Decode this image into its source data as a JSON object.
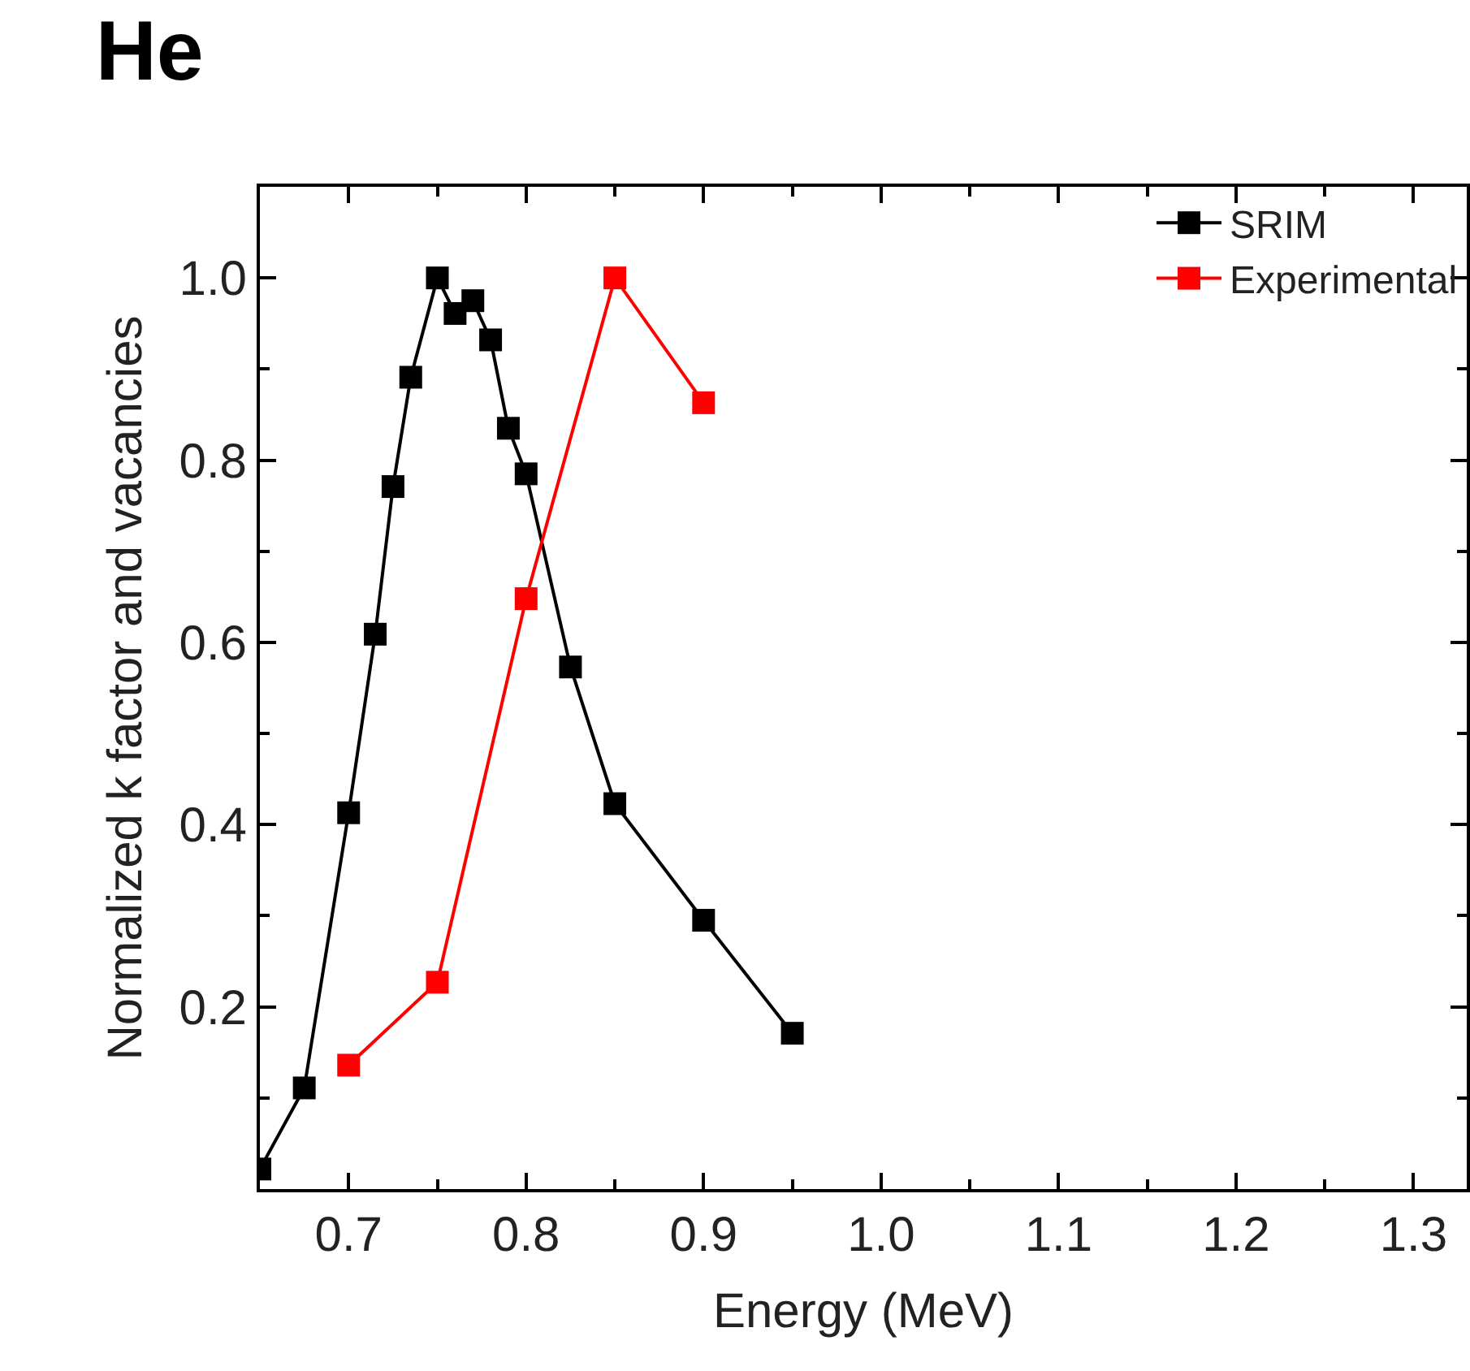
{
  "chart_data": {
    "type": "line",
    "title": "He",
    "xlabel": "Energy (MeV)",
    "ylabel": "Normalized k factor and vacancies",
    "xlim": [
      0.65,
      1.33
    ],
    "xticks": [
      0.7,
      0.8,
      0.9,
      {
        "value": 1,
        "label": "1.0"
      },
      1.1,
      1.2,
      1.3
    ],
    "ylim": [
      0,
      1.1
    ],
    "yticks": [
      0.2,
      0.4,
      0.6,
      0.8,
      {
        "value": 1,
        "label": "1.0"
      }
    ],
    "grid": false,
    "legend": "top right",
    "marker": "square",
    "line_style": "solid",
    "series": [
      {
        "name": "SRIM",
        "color": "#000000",
        "x": [
          0.65,
          0.675,
          0.7,
          0.715,
          0.725,
          0.735,
          0.75,
          0.76,
          0.77,
          0.78,
          0.79,
          0.8,
          0.825,
          0.85,
          0.9,
          0.95
        ],
        "values": [
          0.022,
          0.111,
          0.413,
          0.609,
          0.771,
          0.891,
          1.0,
          0.961,
          0.975,
          0.932,
          0.835,
          0.785,
          0.573,
          0.423,
          0.295,
          0.171
        ]
      },
      {
        "name": "Experimental",
        "color": "#ff0000",
        "x": [
          0.7,
          0.75,
          0.8,
          0.85,
          0.9
        ],
        "values": [
          0.136,
          0.227,
          0.648,
          1.0,
          0.863
        ]
      }
    ]
  }
}
